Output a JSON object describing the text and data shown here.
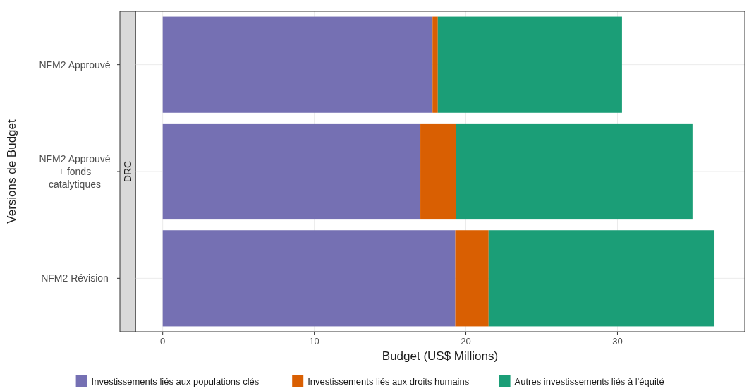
{
  "chart_data": {
    "type": "bar",
    "orientation": "horizontal",
    "stacked": true,
    "xlabel": "Budget (US$ Millions)",
    "ylabel": "Versions de Budget",
    "annotations": [
      "DRC"
    ],
    "categories": [
      "NFM2 Approuvé",
      "NFM2 Approuvé + fonds catalytiques",
      "NFM2 Révision"
    ],
    "series": [
      {
        "name": "Investissements liés aux populations clés",
        "color": "#7570b3",
        "values": [
          17.8,
          17.0,
          19.3
        ]
      },
      {
        "name": "Investissements liés aux droits humains",
        "color": "#d95f02",
        "values": [
          0.35,
          2.35,
          2.2
        ]
      },
      {
        "name": "Autres investissements liés à l'équité",
        "color": "#1b9e77",
        "values": [
          12.15,
          15.6,
          14.9
        ]
      }
    ],
    "xlim": [
      -1.8,
      38.4
    ],
    "xticks": [
      0,
      10,
      20,
      30
    ],
    "grid": true,
    "legend": "bottom"
  }
}
